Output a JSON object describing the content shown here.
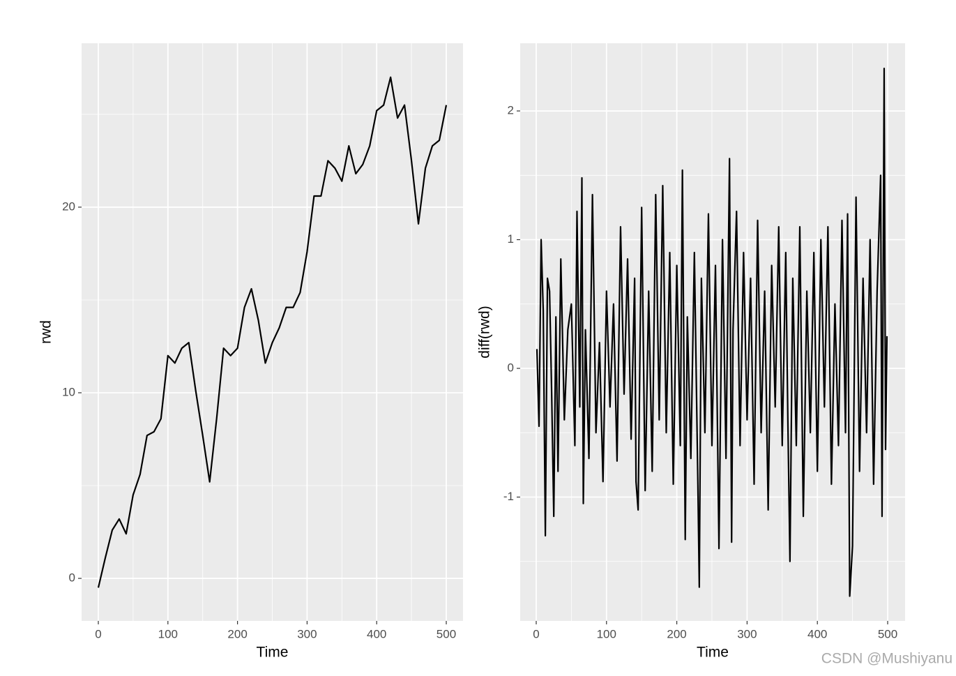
{
  "chart_data": [
    {
      "type": "line",
      "x_label": "Time",
      "y_label": "rwd",
      "color": "#000000",
      "background": "#ebebeb",
      "grid": true,
      "x": [
        0,
        10,
        20,
        30,
        40,
        50,
        60,
        70,
        80,
        90,
        100,
        110,
        120,
        130,
        140,
        150,
        160,
        170,
        180,
        190,
        200,
        210,
        220,
        230,
        240,
        250,
        260,
        270,
        280,
        290,
        300,
        310,
        320,
        330,
        340,
        350,
        360,
        370,
        380,
        390,
        400,
        410,
        420,
        430,
        440,
        450,
        460,
        470,
        480,
        490,
        500
      ],
      "values": [
        -0.5,
        1.1,
        2.6,
        3.2,
        2.4,
        4.5,
        5.6,
        7.7,
        7.9,
        8.6,
        12.0,
        11.6,
        12.4,
        12.7,
        10.1,
        7.7,
        5.2,
        8.6,
        12.4,
        12.0,
        12.4,
        14.6,
        15.6,
        13.9,
        11.6,
        12.7,
        13.5,
        14.6,
        14.6,
        15.4,
        17.6,
        20.6,
        20.6,
        22.5,
        22.1,
        21.4,
        23.3,
        21.8,
        22.3,
        23.3,
        25.2,
        25.5,
        27.0,
        24.8,
        25.5,
        22.5,
        19.1,
        22.1,
        23.3,
        23.6,
        25.5
      ],
      "xlim": [
        -24.05,
        524.05
      ],
      "ylim": [
        -2.29,
        28.83
      ],
      "xticks": [
        0,
        100,
        200,
        300,
        400,
        500
      ],
      "yticks": [
        0,
        10,
        20
      ],
      "minor_xticks": [
        50,
        150,
        250,
        350,
        450
      ],
      "minor_yticks": [
        -5,
        5,
        15,
        25
      ]
    },
    {
      "type": "line",
      "x_label": "Time",
      "y_label": "diff(rwd)",
      "color": "#000000",
      "background": "#ebebeb",
      "grid": true,
      "x": [
        1,
        4,
        7,
        10,
        13,
        16,
        19,
        22,
        25,
        28,
        31,
        35,
        40,
        45,
        50,
        55,
        58,
        62,
        65,
        67,
        70,
        75,
        80,
        85,
        90,
        95,
        100,
        105,
        110,
        115,
        120,
        125,
        130,
        135,
        140,
        142,
        145,
        150,
        155,
        160,
        165,
        170,
        175,
        180,
        185,
        190,
        195,
        200,
        205,
        208,
        212,
        215,
        220,
        225,
        230,
        232,
        235,
        240,
        245,
        250,
        255,
        260,
        265,
        270,
        275,
        278,
        280,
        285,
        290,
        295,
        300,
        305,
        310,
        315,
        320,
        325,
        330,
        335,
        340,
        345,
        350,
        355,
        358,
        361,
        365,
        370,
        375,
        380,
        385,
        390,
        395,
        400,
        405,
        410,
        415,
        420,
        425,
        430,
        435,
        440,
        443,
        446,
        450,
        455,
        460,
        465,
        470,
        475,
        480,
        485,
        490,
        492,
        495,
        497,
        499
      ],
      "values": [
        0.15,
        -0.45,
        1.0,
        0.45,
        -1.3,
        0.7,
        0.6,
        -0.2,
        -1.15,
        0.4,
        -0.8,
        0.85,
        -0.4,
        0.3,
        0.5,
        -0.6,
        1.22,
        -0.3,
        1.48,
        -1.05,
        0.3,
        -0.7,
        1.35,
        -0.5,
        0.2,
        -0.88,
        0.6,
        -0.3,
        0.5,
        -0.72,
        1.1,
        -0.2,
        0.85,
        -0.55,
        0.7,
        -0.88,
        -1.1,
        1.25,
        -0.95,
        0.6,
        -0.8,
        1.35,
        -0.4,
        1.42,
        -0.5,
        0.9,
        -0.9,
        0.8,
        -0.6,
        1.54,
        -1.33,
        0.4,
        -0.7,
        0.9,
        -0.9,
        -1.7,
        0.7,
        -0.5,
        1.2,
        -0.6,
        0.8,
        -1.4,
        1.0,
        -0.7,
        1.63,
        -1.35,
        0.3,
        1.22,
        -0.6,
        0.9,
        -0.4,
        0.7,
        -0.9,
        1.15,
        -0.5,
        0.6,
        -1.1,
        0.8,
        -0.3,
        1.1,
        -0.6,
        0.9,
        -0.4,
        -1.5,
        0.7,
        -0.6,
        1.1,
        -1.15,
        0.6,
        -0.5,
        0.9,
        -0.8,
        1.0,
        -0.3,
        1.1,
        -0.9,
        0.5,
        -0.6,
        1.15,
        -0.5,
        1.2,
        -1.77,
        -1.38,
        1.33,
        -0.8,
        0.7,
        -0.5,
        1.0,
        -0.9,
        0.6,
        1.5,
        -1.15,
        2.33,
        -0.63,
        0.25
      ],
      "xlim": [
        -22.8,
        524.8
      ],
      "ylim": [
        -1.962,
        2.526
      ],
      "xticks": [
        0,
        100,
        200,
        300,
        400,
        500
      ],
      "yticks": [
        -1,
        0,
        1,
        2
      ],
      "minor_xticks": [
        50,
        150,
        250,
        350,
        450
      ],
      "minor_yticks": [
        -1.5,
        -0.5,
        0.5,
        1.5
      ]
    }
  ],
  "watermark": "CSDN @Mushiyanu"
}
